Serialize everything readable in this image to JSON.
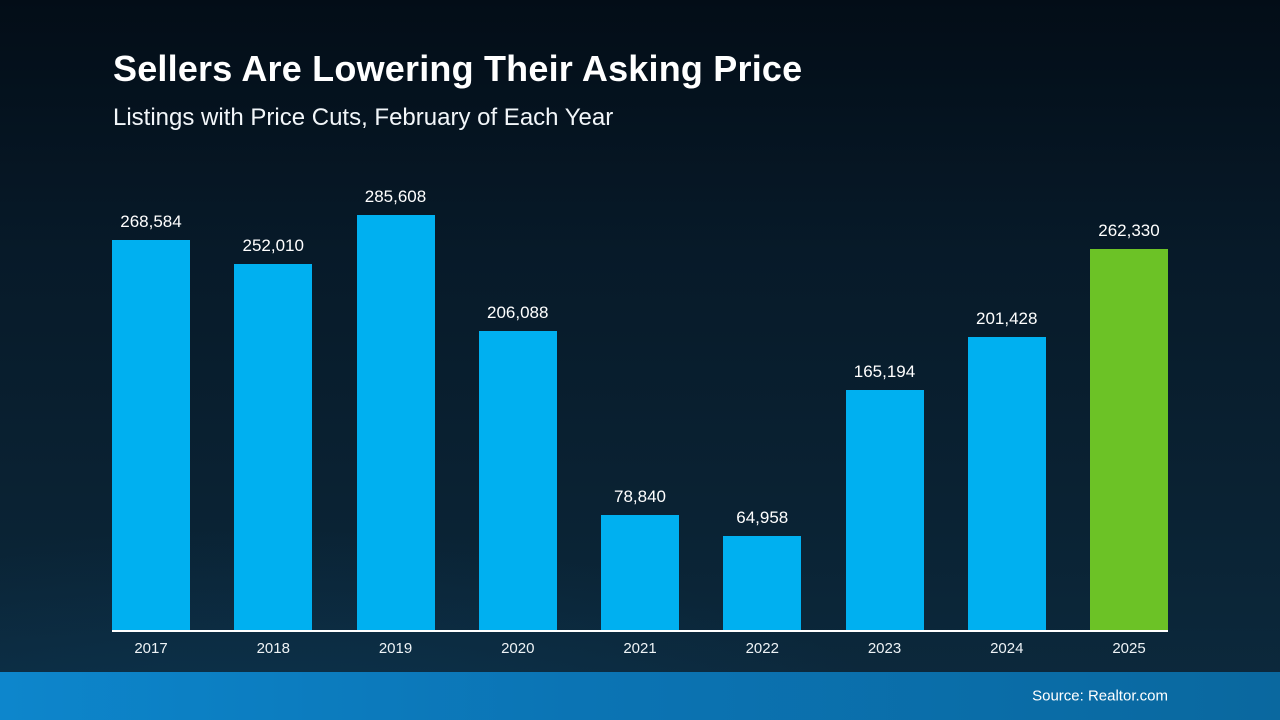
{
  "chart_data": {
    "type": "bar",
    "title": "Sellers Are Lowering Their Asking Price",
    "subtitle": "Listings with Price Cuts, February of Each Year",
    "categories": [
      "2017",
      "2018",
      "2019",
      "2020",
      "2021",
      "2022",
      "2023",
      "2024",
      "2025"
    ],
    "values": [
      268584,
      252010,
      285608,
      206088,
      78840,
      64958,
      165194,
      201428,
      262330
    ],
    "value_labels": [
      "268,584",
      "252,010",
      "285,608",
      "206,088",
      "78,840",
      "64,958",
      "165,194",
      "201,428",
      "262,330"
    ],
    "bar_color": "#00b0f0",
    "highlight_color": "#6cc226",
    "highlight_index": 8,
    "ylim": [
      0,
      285608
    ],
    "grid": false,
    "legend": false,
    "xlabel": "",
    "ylabel": ""
  },
  "footer": {
    "source": "Source: Realtor.com"
  }
}
